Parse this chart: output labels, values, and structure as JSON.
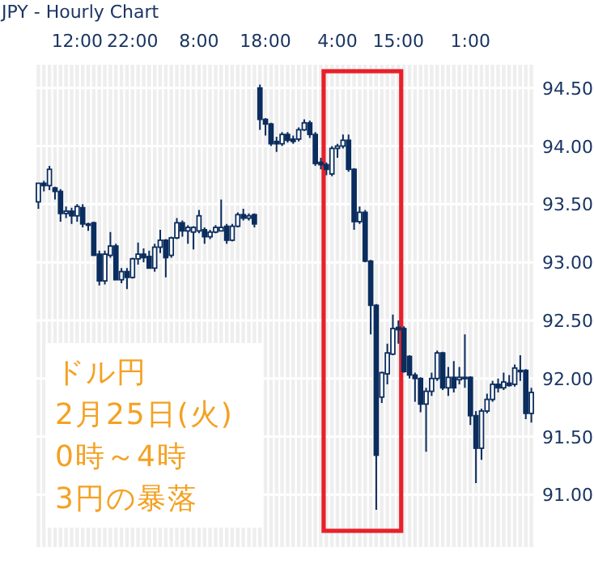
{
  "chart_data": {
    "type": "candlestick",
    "title": "JPY - Hourly Chart",
    "categories": [
      null,
      null,
      null,
      null,
      null,
      null,
      null,
      "12:00",
      null,
      null,
      null,
      null,
      null,
      null,
      null,
      null,
      null,
      "22:00",
      null,
      null,
      null,
      null,
      null,
      null,
      null,
      null,
      null,
      null,
      null,
      "8:00",
      null,
      null,
      null,
      null,
      null,
      null,
      null,
      null,
      null,
      null,
      null,
      "18:00",
      null,
      null,
      null,
      null,
      null,
      null,
      null,
      null,
      null,
      null,
      null,
      null,
      "4:00",
      null,
      null,
      null,
      null,
      null,
      null,
      null,
      null,
      null,
      null,
      "15:00",
      null,
      null,
      null,
      null,
      null,
      null,
      null,
      null,
      null,
      null,
      null,
      null,
      "1:00",
      null,
      null,
      null,
      null,
      null,
      null,
      null,
      null,
      null,
      null,
      null
    ],
    "ohlc": [
      [
        93.52,
        93.68,
        93.46,
        93.68
      ],
      [
        93.68,
        93.7,
        93.61,
        93.66
      ],
      [
        93.66,
        93.83,
        93.62,
        93.8
      ],
      [
        93.64,
        93.65,
        93.54,
        93.61
      ],
      [
        93.61,
        93.63,
        93.35,
        93.42
      ],
      [
        93.42,
        93.48,
        93.38,
        93.44
      ],
      [
        93.44,
        93.47,
        93.33,
        93.4
      ],
      [
        93.4,
        93.5,
        93.35,
        93.48
      ],
      [
        93.47,
        93.5,
        93.3,
        93.33
      ],
      [
        93.33,
        93.34,
        93.27,
        93.32
      ],
      [
        93.34,
        93.35,
        93.06,
        93.06
      ],
      [
        93.07,
        93.1,
        92.8,
        92.84
      ],
      [
        92.84,
        93.1,
        92.81,
        93.07
      ],
      [
        93.06,
        93.26,
        93.04,
        93.14
      ],
      [
        93.14,
        93.16,
        92.85,
        92.85
      ],
      [
        92.85,
        92.95,
        92.82,
        92.92
      ],
      [
        92.92,
        92.95,
        92.77,
        92.87
      ],
      [
        92.87,
        93.04,
        92.86,
        93.03
      ],
      [
        93.03,
        93.17,
        92.98,
        93.07
      ],
      [
        93.07,
        93.12,
        93.0,
        93.04
      ],
      [
        93.05,
        93.1,
        92.95,
        92.95
      ],
      [
        92.95,
        93.16,
        92.92,
        93.13
      ],
      [
        93.13,
        93.28,
        93.08,
        93.19
      ],
      [
        93.19,
        93.2,
        92.87,
        93.04
      ],
      [
        93.06,
        93.22,
        93.04,
        93.21
      ],
      [
        93.21,
        93.38,
        93.2,
        93.34
      ],
      [
        93.34,
        93.36,
        93.22,
        93.27
      ],
      [
        93.27,
        93.32,
        93.16,
        93.3
      ],
      [
        93.26,
        93.31,
        93.11,
        93.3
      ],
      [
        93.27,
        93.45,
        93.25,
        93.4
      ],
      [
        93.28,
        93.3,
        93.16,
        93.22
      ],
      [
        93.22,
        93.28,
        93.2,
        93.26
      ],
      [
        93.26,
        93.32,
        93.25,
        93.3
      ],
      [
        93.27,
        93.54,
        93.27,
        93.3
      ],
      [
        93.31,
        93.33,
        93.16,
        93.19
      ],
      [
        93.19,
        93.33,
        93.18,
        93.31
      ],
      [
        93.31,
        93.43,
        93.3,
        93.41
      ],
      [
        93.41,
        93.46,
        93.36,
        93.38
      ],
      [
        93.38,
        93.42,
        93.36,
        93.4
      ],
      [
        93.41,
        93.42,
        93.3,
        93.33
      ],
      [
        94.5,
        94.53,
        94.14,
        94.23
      ],
      [
        94.23,
        94.24,
        94.09,
        94.19
      ],
      [
        94.19,
        94.2,
        94.0,
        94.02
      ],
      [
        94.04,
        94.08,
        93.95,
        94.02
      ],
      [
        94.02,
        94.12,
        94.0,
        94.1
      ],
      [
        94.1,
        94.12,
        94.03,
        94.05
      ],
      [
        94.06,
        94.09,
        94.02,
        94.04
      ],
      [
        94.06,
        94.16,
        94.04,
        94.14
      ],
      [
        94.14,
        94.23,
        94.13,
        94.2
      ],
      [
        94.2,
        94.22,
        94.07,
        94.1
      ],
      [
        94.1,
        94.12,
        93.83,
        93.85
      ],
      [
        93.86,
        93.9,
        93.8,
        93.84
      ],
      [
        93.84,
        93.86,
        93.75,
        93.8
      ],
      [
        93.76,
        94.0,
        93.74,
        93.98
      ],
      [
        93.98,
        94.02,
        93.9,
        94.0
      ],
      [
        94.0,
        94.1,
        93.98,
        94.05
      ],
      [
        94.05,
        94.1,
        93.78,
        93.8
      ],
      [
        93.8,
        93.81,
        93.28,
        93.35
      ],
      [
        93.35,
        93.48,
        93.33,
        93.43
      ],
      [
        93.43,
        93.45,
        93.0,
        93.01
      ],
      [
        93.01,
        93.02,
        92.38,
        92.63
      ],
      [
        92.63,
        92.64,
        90.87,
        91.34
      ],
      [
        91.84,
        92.06,
        91.79,
        92.05
      ],
      [
        92.04,
        92.3,
        91.95,
        92.22
      ],
      [
        92.21,
        92.55,
        92.2,
        92.43
      ],
      [
        92.44,
        92.5,
        92.3,
        92.42
      ],
      [
        92.43,
        92.45,
        92.05,
        92.06
      ],
      [
        92.19,
        92.2,
        92.0,
        92.03
      ],
      [
        92.03,
        92.05,
        91.8,
        92.0
      ],
      [
        92.0,
        92.01,
        91.71,
        91.78
      ],
      [
        91.78,
        91.92,
        91.37,
        91.89
      ],
      [
        91.89,
        92.05,
        91.85,
        92.0
      ],
      [
        92.0,
        92.24,
        91.98,
        92.22
      ],
      [
        92.22,
        92.23,
        91.9,
        91.92
      ],
      [
        91.92,
        92.1,
        91.85,
        92.01
      ],
      [
        92.01,
        92.15,
        91.88,
        91.92
      ],
      [
        91.99,
        92.1,
        91.95,
        92.01
      ],
      [
        92.0,
        92.38,
        91.92,
        92.01
      ],
      [
        92.01,
        92.02,
        91.6,
        91.68
      ],
      [
        91.68,
        91.72,
        91.1,
        91.4
      ],
      [
        91.4,
        91.74,
        91.3,
        91.72
      ],
      [
        91.72,
        91.87,
        91.7,
        91.82
      ],
      [
        91.82,
        91.98,
        91.8,
        91.95
      ],
      [
        91.95,
        92.0,
        91.88,
        91.92
      ],
      [
        91.92,
        92.05,
        91.9,
        91.97
      ],
      [
        91.96,
        92.03,
        91.93,
        91.94
      ],
      [
        91.95,
        92.12,
        91.93,
        92.09
      ],
      [
        92.06,
        92.2,
        91.98,
        92.07
      ],
      [
        92.07,
        92.08,
        91.65,
        91.7
      ],
      [
        91.7,
        91.92,
        91.62,
        91.88
      ]
    ],
    "color": "#0b2d5e",
    "ylim": [
      90.55,
      94.7
    ],
    "yticks": [
      {
        "value": 91,
        "label": "91.00"
      },
      {
        "value": 91.5,
        "label": "91.50"
      },
      {
        "value": 92,
        "label": "92.00"
      },
      {
        "value": 92.5,
        "label": "92.50"
      },
      {
        "value": 93,
        "label": "93.00"
      },
      {
        "value": 93.5,
        "label": "93.50"
      },
      {
        "value": 94,
        "label": "94.00"
      },
      {
        "value": 94.5,
        "label": "94.50"
      }
    ],
    "grid": true,
    "annotations": [
      "ドル円",
      "2月25日(火)",
      "0時～4時",
      "3円の暴落"
    ]
  }
}
